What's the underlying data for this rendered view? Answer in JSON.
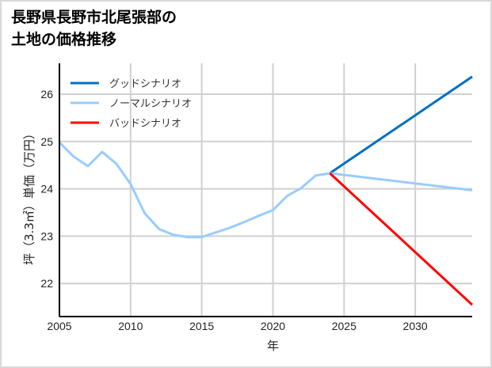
{
  "title_line1": "長野県長野市北尾張部の",
  "title_line2": "土地の価格推移",
  "colors": {
    "good": "#0070c0",
    "normal": "#99ccff",
    "bad": "#ff0000",
    "grid": "#d0d0d0"
  },
  "chart_data": {
    "type": "line",
    "title": "長野県長野市北尾張部の土地の価格推移",
    "xlabel": "年",
    "ylabel": "坪（3.3㎡）単価（万円）",
    "xlim": [
      2005,
      2034
    ],
    "ylim": [
      21.4,
      26.6
    ],
    "xticks": [
      2005,
      2010,
      2015,
      2020,
      2025,
      2030
    ],
    "yticks": [
      22,
      23,
      24,
      25,
      26
    ],
    "grid": true,
    "legend_position": "upper left",
    "series": [
      {
        "name": "グッドシナリオ",
        "color": "#0070c0",
        "x": [
          2024,
          2034
        ],
        "values": [
          24.33,
          26.37
        ]
      },
      {
        "name": "ノーマルシナリオ",
        "color": "#99ccff",
        "x": [
          2005,
          2006,
          2007,
          2008,
          2009,
          2010,
          2011,
          2012,
          2013,
          2014,
          2015,
          2016,
          2017,
          2018,
          2019,
          2020,
          2021,
          2022,
          2023,
          2024,
          2034
        ],
        "values": [
          24.98,
          24.68,
          24.48,
          24.78,
          24.53,
          24.1,
          23.48,
          23.15,
          23.03,
          22.98,
          22.98,
          23.08,
          23.18,
          23.3,
          23.43,
          23.55,
          23.85,
          24.02,
          24.28,
          24.33,
          23.97
        ]
      },
      {
        "name": "バッドシナリオ",
        "color": "#ff0000",
        "x": [
          2024,
          2034
        ],
        "values": [
          24.33,
          21.55
        ]
      }
    ]
  }
}
